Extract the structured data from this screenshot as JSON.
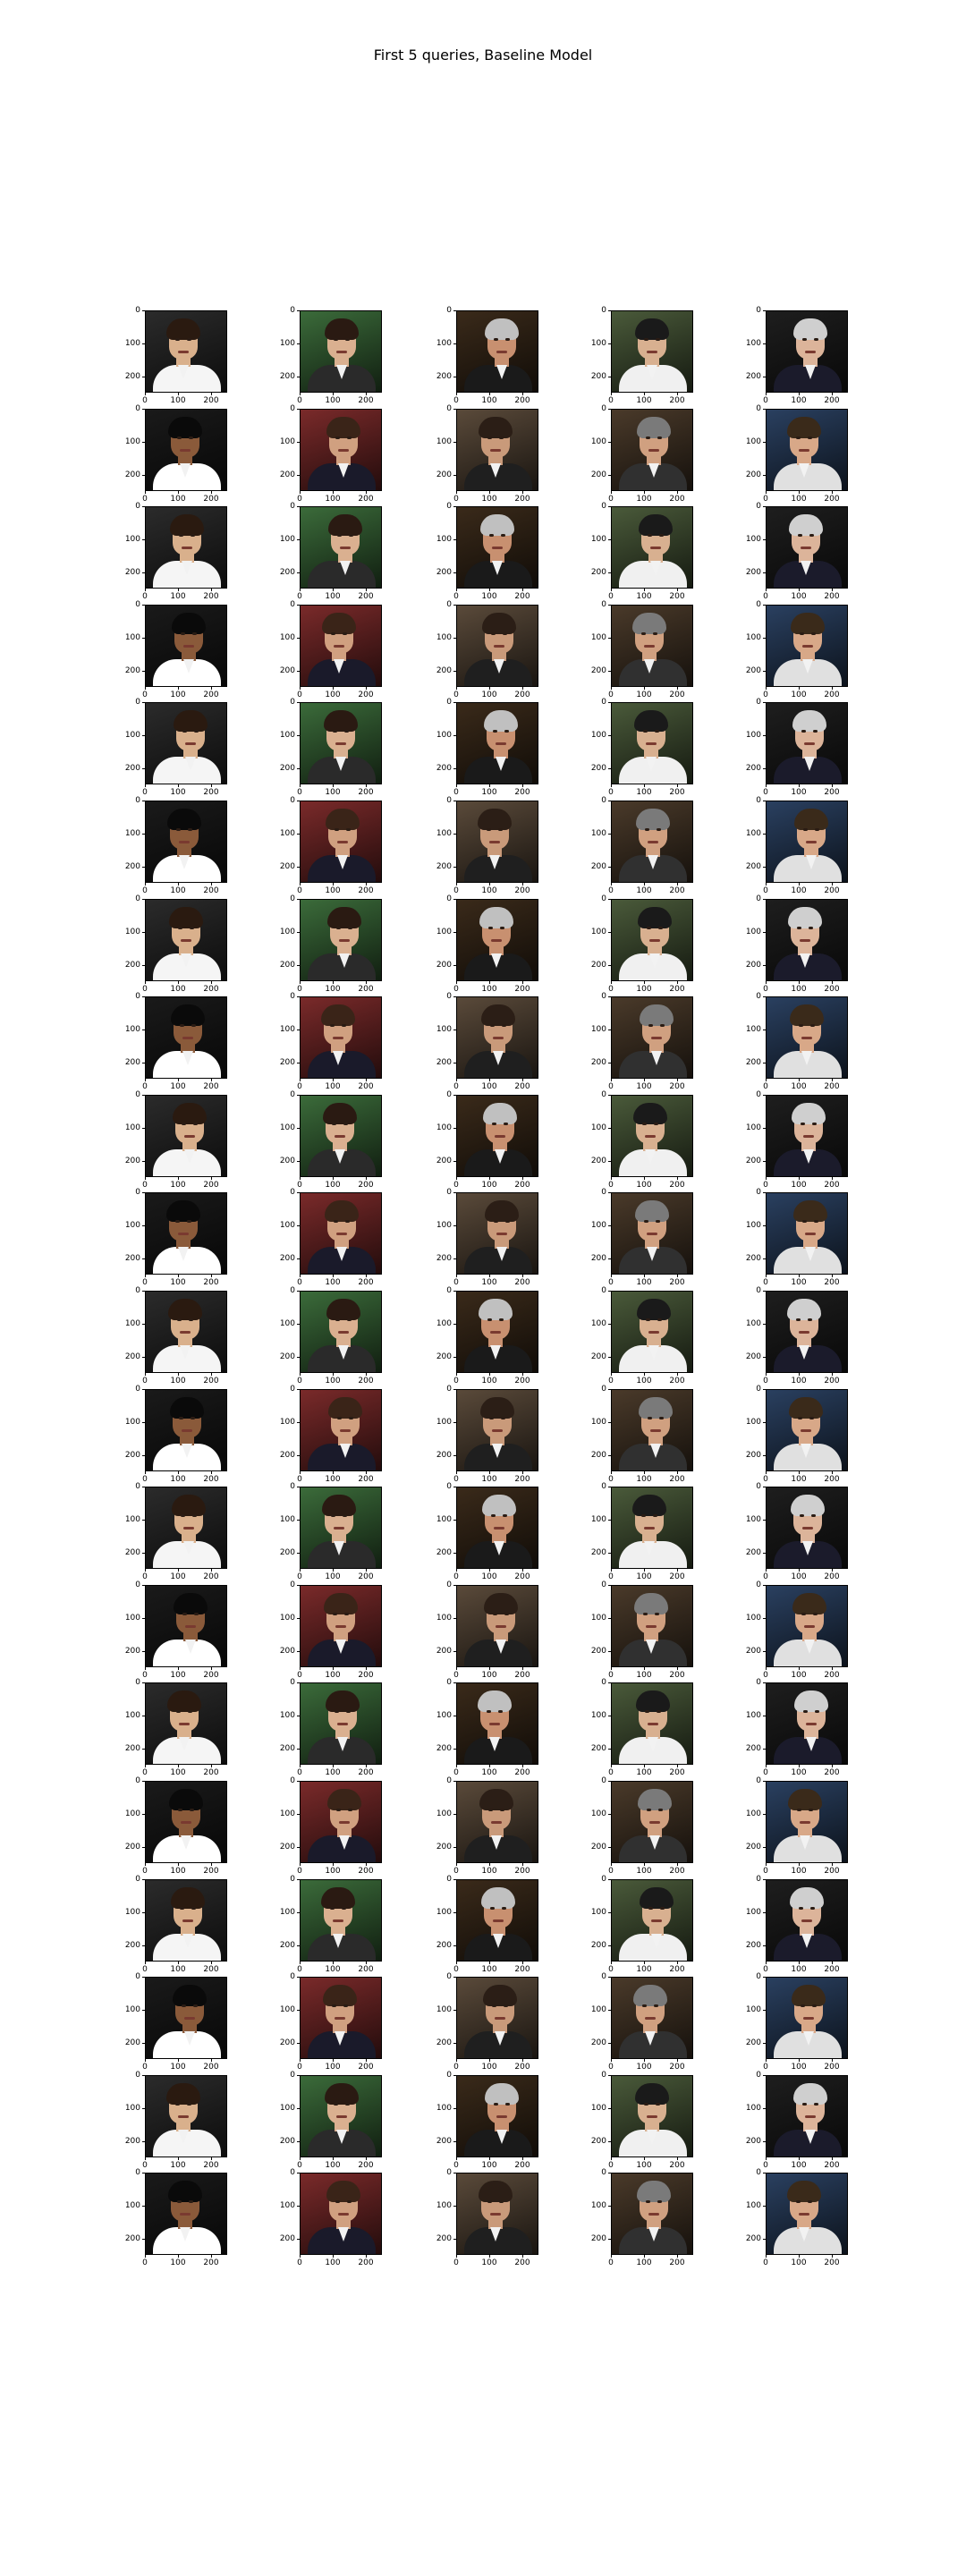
{
  "title": "First 5 queries, Baseline Model",
  "axes": {
    "x_ticks": [
      "0",
      "100",
      "200"
    ],
    "y_ticks": [
      "0",
      "100",
      "200"
    ]
  },
  "columns": 5,
  "rows": 20,
  "panel_palette": [
    [
      "#2b2b2b",
      "#d9b08c",
      "#2a1a10",
      "#f5f5f5"
    ],
    [
      "#1c2030",
      "#6b4630",
      "#151010",
      "#c9a227"
    ],
    [
      "#5a4a3a",
      "#c99a7a",
      "#2b1e16",
      "#1f1f1f"
    ],
    [
      "#3a3a3a",
      "#d4a98a",
      "#5a3a22",
      "#222222"
    ],
    [
      "#1e1e1e",
      "#dcb49a",
      "#cfcfcf",
      "#1b1b2b"
    ],
    [
      "#2f5fa8",
      "#e0b896",
      "#3a2618",
      "#ffffff"
    ],
    [
      "#1e3aa0",
      "#e3c0a0",
      "#3b2416",
      "#101010"
    ],
    [
      "#3b6b3a",
      "#dab090",
      "#2a1a12",
      "#2a2a2a"
    ],
    [
      "#2a3f6a",
      "#c99578",
      "#6a6a6a",
      "#252525"
    ],
    [
      "#4a3a2a",
      "#d0a080",
      "#7a7a7a",
      "#303030"
    ],
    [
      "#101010",
      "#b07a58",
      "#1a1008",
      "#e8e8e8"
    ],
    [
      "#2a2a4a",
      "#e0c0a8",
      "#e0c060",
      "#202840"
    ],
    [
      "#1a1a1a",
      "#8a5a3a",
      "#0a0a0a",
      "#ffffff"
    ],
    [
      "#6a7a8a",
      "#d8b8a0",
      "#9a9a9a",
      "#2a3040"
    ],
    [
      "#3a2a1a",
      "#c89070",
      "#c0c0c0",
      "#1a1a1a"
    ],
    [
      "#8a5a2a",
      "#e0b080",
      "#4a3020",
      "#2a2a3a"
    ],
    [
      "#2a4060",
      "#d8a888",
      "#3a2a1a",
      "#e0e0e0"
    ],
    [
      "#5a6a5a",
      "#d0a890",
      "#b0b0b0",
      "#2a2a2a"
    ],
    [
      "#0a2a6a",
      "#e0b898",
      "#2a1a10",
      "#ffffff"
    ],
    [
      "#7a2a2a",
      "#d0a080",
      "#3a2418",
      "#1a1a2a"
    ],
    [
      "#2a2a2a",
      "#c0906a",
      "#d0d0d0",
      "#303840"
    ],
    [
      "#4a5a3a",
      "#d8b090",
      "#1a1a1a",
      "#f0f0f0"
    ],
    [
      "#1a3040",
      "#e4c4a8",
      "#6a4a2a",
      "#202020"
    ],
    [
      "#6a6a6a",
      "#d0a888",
      "#e0e0e0",
      "#252530"
    ]
  ]
}
